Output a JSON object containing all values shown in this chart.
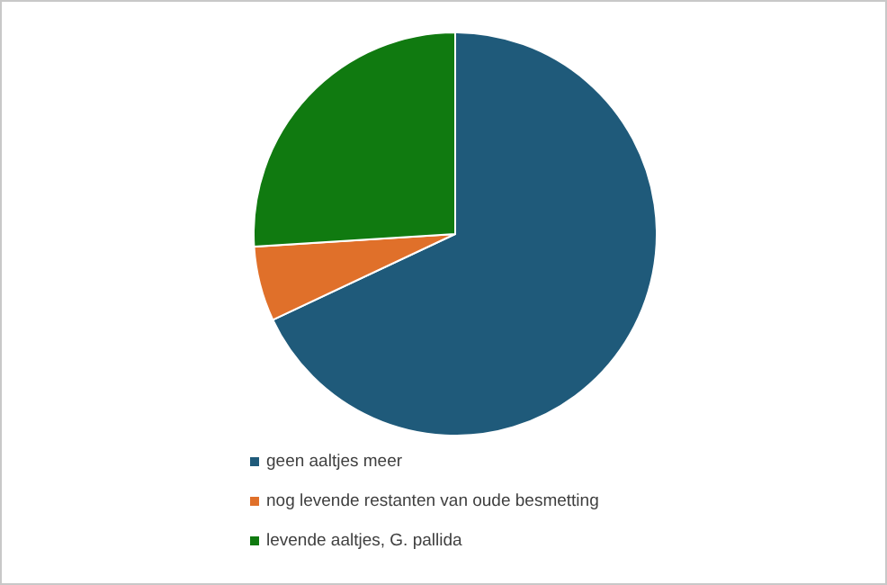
{
  "chart_data": {
    "type": "pie",
    "categories": [
      "geen aaltjes meer",
      "nog levende restanten van oude besmetting",
      "levende aaltjes, G. pallida"
    ],
    "values": [
      68,
      6,
      26
    ],
    "colors": [
      "#1f5a7a",
      "#e0702a",
      "#107a10"
    ],
    "legend": "bottom left"
  }
}
